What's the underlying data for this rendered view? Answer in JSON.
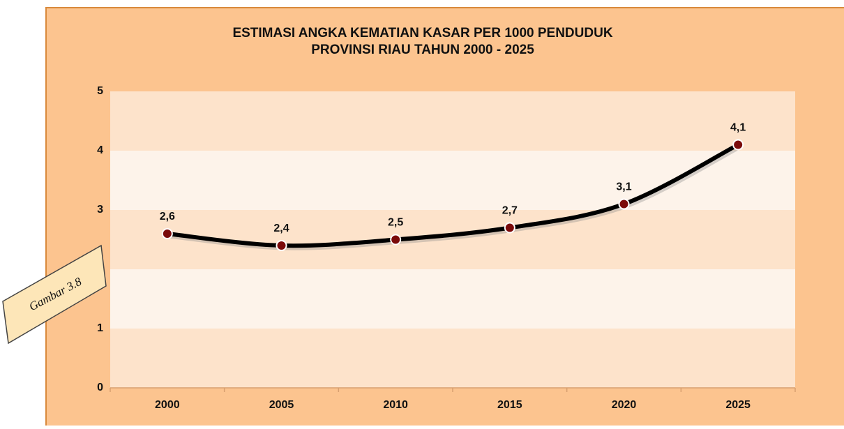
{
  "chart_data": {
    "type": "line",
    "title": "ESTIMASI ANGKA KEMATIAN KASAR PER 1000 PENDUDUK",
    "subtitle": "PROVINSI RIAU TAHUN 2000 - 2025",
    "categories": [
      "2000",
      "2005",
      "2010",
      "2015",
      "2020",
      "2025"
    ],
    "series": [
      {
        "name": "Angka Kematian Kasar",
        "color": "#000000",
        "marker_color": "#7b0a0a",
        "values": [
          2.6,
          2.4,
          2.5,
          2.7,
          3.1,
          4.1
        ],
        "value_labels": [
          "2,6",
          "2,4",
          "2,5",
          "2,7",
          "3,1",
          "4,1"
        ]
      }
    ],
    "ylim": [
      0,
      5
    ],
    "yticks": [
      0,
      1,
      2,
      3,
      4,
      5
    ],
    "grid": true,
    "legend": false
  },
  "figure_label": "Gambar 3.8"
}
